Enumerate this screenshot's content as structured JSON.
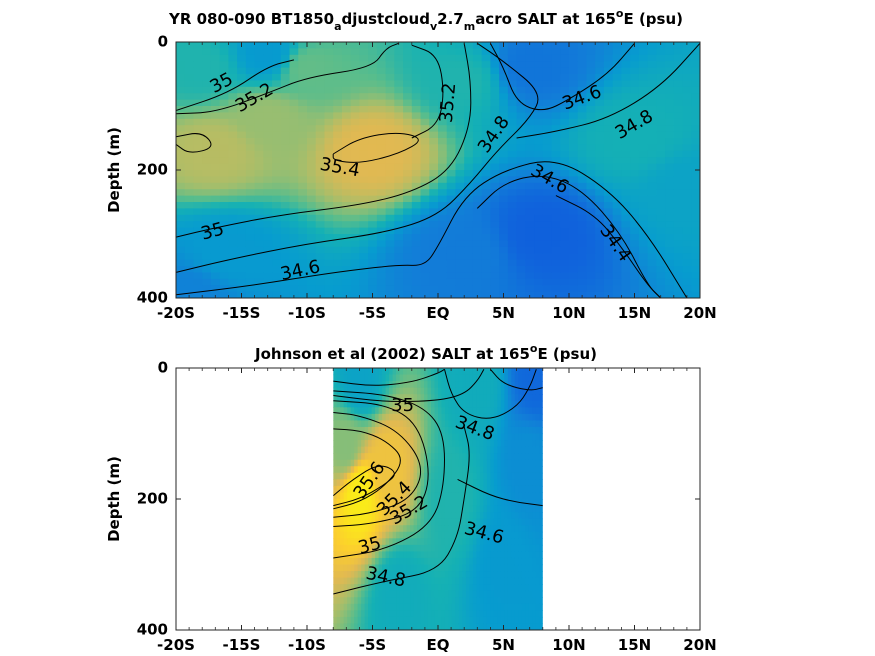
{
  "chart_data": [
    {
      "type": "heatmap",
      "title": {
        "prefix": "YR 080-090 BT1850",
        "sub1": "a",
        "mid1": "djustcloud",
        "sub2": "v",
        "mid2": "2.7",
        "sub3": "m",
        "mid3": "acro SALT at 165",
        "sup": "o",
        "suffix": "E (psu)"
      },
      "ylabel": "Depth (m)",
      "x_ticks": [
        "-20S",
        "-15S",
        "-10S",
        "-5S",
        "EQ",
        "5N",
        "10N",
        "15N",
        "20N"
      ],
      "x_tick_values": [
        -20,
        -15,
        -10,
        -5,
        0,
        5,
        10,
        15,
        20
      ],
      "y_ticks": [
        "0",
        "200",
        "400"
      ],
      "y_tick_values": [
        0,
        200,
        400
      ],
      "xlim": [
        -20,
        20
      ],
      "ylim": [
        0,
        400
      ],
      "y_reversed": true,
      "data_extent": [
        -20,
        20
      ],
      "fields": [
        {
          "x": -17,
          "y": 170,
          "value": 35.45
        },
        {
          "x": -13,
          "y": 120,
          "value": 35.35
        },
        {
          "x": -5,
          "y": 170,
          "value": 35.6
        },
        {
          "x": -10,
          "y": 40,
          "value": 35.2
        },
        {
          "x": -18,
          "y": 40,
          "value": 35.0
        },
        {
          "x": -13,
          "y": 20,
          "value": 34.7
        },
        {
          "x": 2,
          "y": 60,
          "value": 35.0
        },
        {
          "x": 7,
          "y": 40,
          "value": 34.4
        },
        {
          "x": 8,
          "y": 300,
          "value": 34.25
        },
        {
          "x": 2,
          "y": 330,
          "value": 34.45
        },
        {
          "x": 15,
          "y": 150,
          "value": 34.95
        },
        {
          "x": 19,
          "y": 230,
          "value": 34.8
        },
        {
          "x": -16,
          "y": 330,
          "value": 34.7
        },
        {
          "x": -19,
          "y": 395,
          "value": 34.5
        }
      ],
      "contours": [
        {
          "label": "35",
          "label_x": -16.5,
          "label_y": 65,
          "label_angle": -28,
          "path": [
            [
              -20,
              107
            ],
            [
              -16,
              80
            ],
            [
              -13,
              38
            ],
            [
              -11,
              28
            ]
          ]
        },
        {
          "label": "35.2",
          "label_x": -14,
          "label_y": 88,
          "label_angle": -30,
          "path": [
            [
              -20,
              112
            ],
            [
              -17,
              110
            ],
            [
              -13,
              80
            ],
            [
              -10,
              55
            ],
            [
              -5,
              40
            ],
            [
              -4,
              10
            ],
            [
              -3,
              2
            ]
          ]
        },
        {
          "label": "35.2",
          "label_x": 0.8,
          "label_y": 95,
          "label_angle": -85,
          "path": [
            [
              -2,
              5
            ],
            [
              0,
              20
            ],
            [
              0.5,
              80
            ],
            [
              0,
              130
            ],
            [
              -2,
              150
            ]
          ]
        },
        {
          "label": "35.4",
          "label_x": -7.5,
          "label_y": 197,
          "label_angle": 10,
          "path": [
            [
              -8,
              175
            ],
            [
              -6,
              150
            ],
            [
              -3,
              140
            ],
            [
              -1,
              152
            ],
            [
              -3,
              175
            ],
            [
              -6,
              190
            ],
            [
              -8,
              185
            ],
            [
              -8,
              175
            ]
          ]
        },
        {
          "label": "",
          "label_x": 0,
          "label_y": 0,
          "label_angle": 0,
          "path": [
            [
              -20,
              148
            ],
            [
              -18,
              140
            ],
            [
              -17,
              165
            ],
            [
              -19,
              175
            ],
            [
              -20,
              160
            ]
          ]
        },
        {
          "label": "35",
          "label_x": -17.2,
          "label_y": 297,
          "label_angle": -15,
          "path": [
            [
              -20,
              305
            ],
            [
              -17,
              290
            ],
            [
              -12,
              270
            ],
            [
              -6,
              255
            ],
            [
              -2,
              235
            ],
            [
              1,
              200
            ],
            [
              2.5,
              130
            ],
            [
              2.5,
              60
            ],
            [
              2,
              2
            ]
          ]
        },
        {
          "label": "34.8",
          "label_x": 4.3,
          "label_y": 145,
          "label_angle": -55,
          "path": [
            [
              -20,
              360
            ],
            [
              -16,
              340
            ],
            [
              -10,
              315
            ],
            [
              -4,
              298
            ],
            [
              0,
              272
            ],
            [
              2.5,
              220
            ],
            [
              4.5,
              170
            ],
            [
              7,
              120
            ],
            [
              8,
              80
            ],
            [
              5,
              30
            ],
            [
              3,
              2
            ]
          ]
        },
        {
          "label": "34.8",
          "label_x": 15,
          "label_y": 130,
          "label_angle": -30,
          "path": [
            [
              20,
              2
            ],
            [
              17,
              70
            ],
            [
              13,
              120
            ],
            [
              9,
              140
            ],
            [
              6,
              150
            ]
          ]
        },
        {
          "label": "34.6",
          "label_x": -10.5,
          "label_y": 358,
          "label_angle": -12,
          "path": [
            [
              -20,
              395
            ],
            [
              -14,
              380
            ],
            [
              -8,
              360
            ],
            [
              -3,
              348
            ],
            [
              -1,
              350
            ],
            [
              0,
              320
            ],
            [
              2,
              240
            ],
            [
              5,
              200
            ],
            [
              9,
              180
            ],
            [
              13,
              230
            ],
            [
              16,
              300
            ],
            [
              19,
              400
            ]
          ]
        },
        {
          "label": "34.6",
          "label_x": 11,
          "label_y": 88,
          "label_angle": -20,
          "path": [
            [
              15,
              2
            ],
            [
              13,
              50
            ],
            [
              10,
              90
            ],
            [
              8,
              110
            ],
            [
              6,
              95
            ],
            [
              5,
              40
            ],
            [
              4,
              2
            ]
          ]
        },
        {
          "label": "34.6",
          "label_x": 8.5,
          "label_y": 215,
          "label_angle": 30,
          "path": [
            [
              3,
              260
            ],
            [
              5,
              220
            ],
            [
              8,
              205
            ],
            [
              11,
              230
            ],
            [
              14,
              300
            ],
            [
              16,
              380
            ],
            [
              17,
              400
            ]
          ]
        },
        {
          "label": "34.4",
          "label_x": 13.5,
          "label_y": 315,
          "label_angle": 55,
          "path": [
            [
              9,
              240
            ],
            [
              12,
              270
            ],
            [
              14,
              320
            ],
            [
              16,
              380
            ],
            [
              17,
              400
            ]
          ]
        }
      ]
    },
    {
      "type": "heatmap",
      "title": {
        "prefix": "Johnson et al (2002) SALT at 165",
        "sup": "o",
        "suffix": "E (psu)"
      },
      "ylabel": "Depth (m)",
      "x_ticks": [
        "-20S",
        "-15S",
        "-10S",
        "-5S",
        "EQ",
        "5N",
        "10N",
        "15N",
        "20N"
      ],
      "x_tick_values": [
        -20,
        -15,
        -10,
        -5,
        0,
        5,
        10,
        15,
        20
      ],
      "y_ticks": [
        "0",
        "200",
        "400"
      ],
      "y_tick_values": [
        0,
        200,
        400
      ],
      "xlim": [
        -20,
        20
      ],
      "ylim": [
        0,
        400
      ],
      "y_reversed": true,
      "data_extent": [
        -8,
        8
      ],
      "fields": [
        {
          "x": -6,
          "y": 190,
          "value": 36.0
        },
        {
          "x": -4,
          "y": 150,
          "value": 35.7
        },
        {
          "x": -7,
          "y": 120,
          "value": 35.3
        },
        {
          "x": -6,
          "y": 20,
          "value": 34.8
        },
        {
          "x": 7.5,
          "y": 10,
          "value": 34.3
        },
        {
          "x": 3,
          "y": 20,
          "value": 34.9
        },
        {
          "x": 5,
          "y": 300,
          "value": 34.7
        },
        {
          "x": -3,
          "y": 350,
          "value": 34.9
        },
        {
          "x": 1,
          "y": 200,
          "value": 35.0
        },
        {
          "x": 7,
          "y": 150,
          "value": 34.6
        }
      ],
      "contours": [
        {
          "label": "35.6",
          "label_x": -5.2,
          "label_y": 172,
          "label_angle": -55,
          "path": [
            [
              -8,
              195
            ],
            [
              -6.5,
              170
            ],
            [
              -4.5,
              145
            ],
            [
              -3,
              160
            ],
            [
              -4.2,
              180
            ],
            [
              -6,
              200
            ],
            [
              -8,
              210
            ]
          ]
        },
        {
          "label": "35.4",
          "label_x": -3.3,
          "label_y": 200,
          "label_angle": -45,
          "path": [
            [
              -8,
              215
            ],
            [
              -6,
              205
            ],
            [
              -4,
              180
            ],
            [
              -2.5,
              140
            ],
            [
              -4,
              110
            ],
            [
              -6,
              95
            ],
            [
              -8,
              93
            ]
          ]
        },
        {
          "label": "35.2",
          "label_x": -2.2,
          "label_y": 218,
          "label_angle": -30,
          "path": [
            [
              -8,
              228
            ],
            [
              -5,
              222
            ],
            [
              -2,
              200
            ],
            [
              -1,
              150
            ],
            [
              -3,
              95
            ],
            [
              -6,
              72
            ],
            [
              -8,
              68
            ]
          ]
        },
        {
          "label": "",
          "label_x": 0,
          "label_y": 0,
          "label_angle": 0,
          "path": [
            [
              -8,
              242
            ],
            [
              -5,
              238
            ],
            [
              -1.5,
              220
            ],
            [
              -0.5,
              165
            ],
            [
              -1.5,
              85
            ],
            [
              -4,
              55
            ],
            [
              -8,
              50
            ]
          ]
        },
        {
          "label": "35",
          "label_x": -5.2,
          "label_y": 272,
          "label_angle": -15,
          "path": [
            [
              -8,
              290
            ],
            [
              -4,
              278
            ],
            [
              -0.5,
              240
            ],
            [
              0.5,
              180
            ],
            [
              0.5,
              100
            ],
            [
              -1,
              60
            ],
            [
              -4,
              40
            ],
            [
              -8,
              35
            ]
          ]
        },
        {
          "label": "35",
          "label_x": -2.7,
          "label_y": 58,
          "label_angle": 0,
          "path": [
            [
              -8,
              42
            ],
            [
              -4,
              52
            ],
            [
              0,
              50
            ],
            [
              2,
              40
            ],
            [
              3,
              20
            ],
            [
              3.5,
              2
            ]
          ]
        },
        {
          "label": "34.8",
          "label_x": 2.8,
          "label_y": 93,
          "label_angle": 20,
          "path": [
            [
              0.5,
              2
            ],
            [
              1,
              40
            ],
            [
              2,
              70
            ],
            [
              4,
              80
            ],
            [
              6,
              60
            ],
            [
              7,
              30
            ],
            [
              7.5,
              2
            ]
          ]
        },
        {
          "label": "34.8",
          "label_x": -4,
          "label_y": 320,
          "label_angle": 12,
          "path": [
            [
              -8,
              345
            ],
            [
              -4,
              325
            ],
            [
              0,
              310
            ],
            [
              1.5,
              260
            ],
            [
              2,
              200
            ],
            [
              2.5,
              130
            ],
            [
              2,
              90
            ]
          ]
        },
        {
          "label": "34.6",
          "label_x": 3.5,
          "label_y": 253,
          "label_angle": 15,
          "path": [
            [
              1.5,
              170
            ],
            [
              4,
              195
            ],
            [
              6,
              205
            ],
            [
              8,
              210
            ]
          ]
        },
        {
          "label": "",
          "label_x": 0,
          "label_y": 0,
          "label_angle": 0,
          "path": [
            [
              -8,
              20
            ],
            [
              -5,
              28
            ],
            [
              -2,
              22
            ],
            [
              0,
              8
            ],
            [
              0.5,
              2
            ]
          ]
        },
        {
          "label": "",
          "label_x": 0,
          "label_y": 0,
          "label_angle": 0,
          "path": [
            [
              4,
              2
            ],
            [
              5,
              25
            ],
            [
              7,
              35
            ],
            [
              8,
              30
            ]
          ]
        }
      ]
    }
  ]
}
